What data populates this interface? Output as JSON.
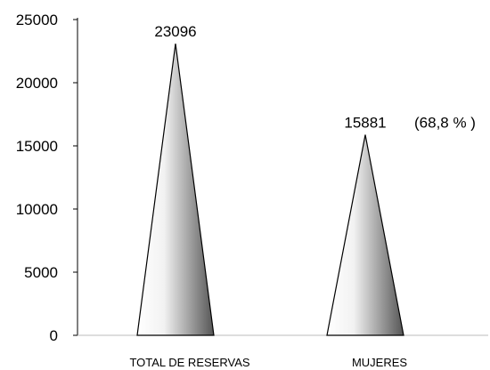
{
  "chart_data": {
    "type": "bar",
    "bar_shape": "cone",
    "categories": [
      "TOTAL DE RESERVAS",
      "MUJERES"
    ],
    "values": [
      23096,
      15881
    ],
    "data_labels": [
      "23096",
      "15881"
    ],
    "annotations": [
      "",
      "(68,8 % )"
    ],
    "yticks": [
      "0",
      "5000",
      "10000",
      "15000",
      "20000",
      "25000"
    ],
    "ylim": [
      0,
      25000
    ],
    "grid": false,
    "colors": {
      "dark": "#555555",
      "light": "#ffffff",
      "stroke": "#000000"
    }
  }
}
